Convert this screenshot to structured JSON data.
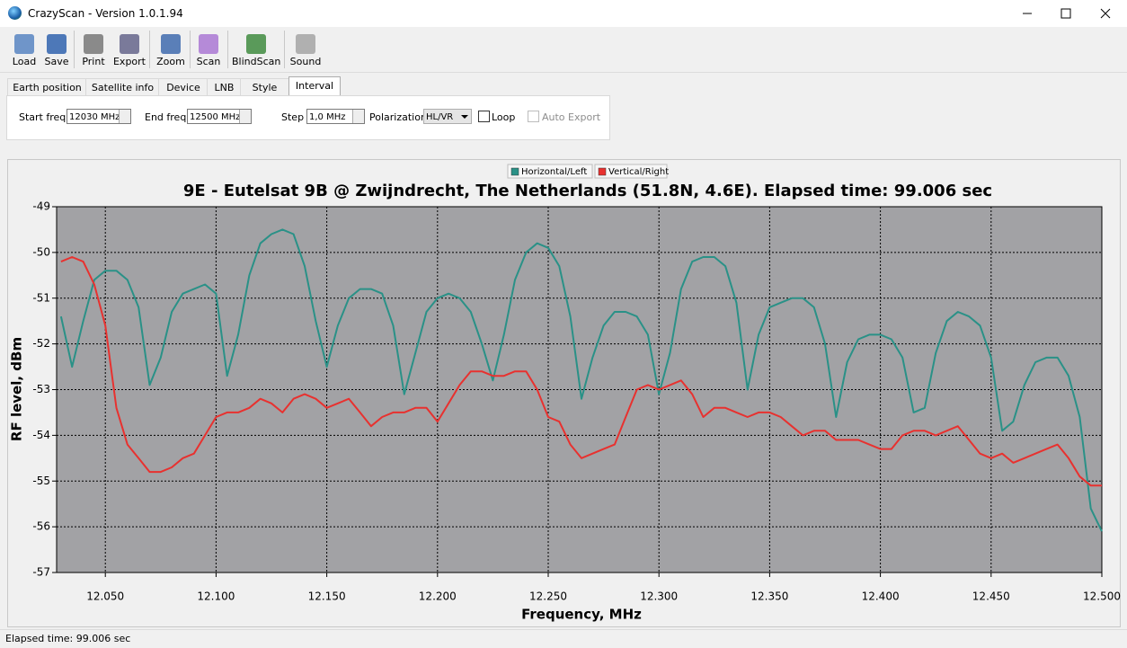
{
  "window": {
    "title": "CrazyScan - Version 1.0.1.94"
  },
  "toolbar": [
    "Load",
    "Save",
    "Print",
    "Export",
    "Zoom",
    "Scan",
    "BlindScan",
    "Sound"
  ],
  "tabs": [
    "Earth position",
    "Satellite info",
    "Device",
    "LNB",
    "Style",
    "Interval"
  ],
  "form": {
    "start_label": "Start freq",
    "start_value": "12030 MHz",
    "end_label": "End freq",
    "end_value": "12500 MHz",
    "step_label": "Step",
    "step_value": "1,0 MHz",
    "pol_label": "Polarization",
    "pol_value": "HL/VR",
    "loop_label": "Loop",
    "auto_export_label": "Auto Export"
  },
  "status": "Elapsed time: 99.006 sec",
  "chart_data": {
    "type": "line",
    "title": "9E - Eutelsat 9B @ Zwijndrecht, The Netherlands (51.8N, 4.6E). Elapsed time: 99.006 sec",
    "x_label": "Frequency, MHz",
    "y_label": "RF level, dBm",
    "legend": "top-center",
    "grid": true,
    "xlim": [
      12.028,
      12.5
    ],
    "ylim": [
      -57,
      -49
    ],
    "xticks": [
      {
        "value": 12.05,
        "label": "12.050"
      },
      {
        "value": 12.1,
        "label": "12.100"
      },
      {
        "value": 12.15,
        "label": "12.150"
      },
      {
        "value": 12.2,
        "label": "12.200"
      },
      {
        "value": 12.25,
        "label": "12.250"
      },
      {
        "value": 12.3,
        "label": "12.300"
      },
      {
        "value": 12.35,
        "label": "12.350"
      },
      {
        "value": 12.4,
        "label": "12.400"
      },
      {
        "value": 12.45,
        "label": "12.450"
      },
      {
        "value": 12.5,
        "label": "12.500"
      }
    ],
    "yticks": [
      -49,
      -50,
      -51,
      -52,
      -53,
      -54,
      -55,
      -56,
      -57
    ],
    "x": [
      12.03,
      12.035,
      12.04,
      12.045,
      12.05,
      12.055,
      12.06,
      12.065,
      12.07,
      12.075,
      12.08,
      12.085,
      12.09,
      12.095,
      12.1,
      12.105,
      12.11,
      12.115,
      12.12,
      12.125,
      12.13,
      12.135,
      12.14,
      12.145,
      12.15,
      12.155,
      12.16,
      12.165,
      12.17,
      12.175,
      12.18,
      12.185,
      12.19,
      12.195,
      12.2,
      12.205,
      12.21,
      12.215,
      12.22,
      12.225,
      12.23,
      12.235,
      12.24,
      12.245,
      12.25,
      12.255,
      12.26,
      12.265,
      12.27,
      12.275,
      12.28,
      12.285,
      12.29,
      12.295,
      12.3,
      12.305,
      12.31,
      12.315,
      12.32,
      12.325,
      12.33,
      12.335,
      12.34,
      12.345,
      12.35,
      12.355,
      12.36,
      12.365,
      12.37,
      12.375,
      12.38,
      12.385,
      12.39,
      12.395,
      12.4,
      12.405,
      12.41,
      12.415,
      12.42,
      12.425,
      12.43,
      12.435,
      12.44,
      12.445,
      12.45,
      12.455,
      12.46,
      12.465,
      12.47,
      12.475,
      12.48,
      12.485,
      12.49,
      12.495,
      12.5
    ],
    "series": [
      {
        "name": "Horizontal/Left",
        "color": "#2a9187",
        "values": [
          -51.4,
          -52.5,
          -51.5,
          -50.6,
          -50.4,
          -50.4,
          -50.6,
          -51.2,
          -52.9,
          -52.3,
          -51.3,
          -50.9,
          -50.8,
          -50.7,
          -50.9,
          -52.7,
          -51.8,
          -50.5,
          -49.8,
          -49.6,
          -49.5,
          -49.6,
          -50.3,
          -51.5,
          -52.5,
          -51.6,
          -51.0,
          -50.8,
          -50.8,
          -50.9,
          -51.6,
          -53.1,
          -52.2,
          -51.3,
          -51.0,
          -50.9,
          -51.0,
          -51.3,
          -52.0,
          -52.8,
          -51.8,
          -50.6,
          -50.0,
          -49.8,
          -49.9,
          -50.3,
          -51.4,
          -53.2,
          -52.3,
          -51.6,
          -51.3,
          -51.3,
          -51.4,
          -51.8,
          -53.1,
          -52.2,
          -50.8,
          -50.2,
          -50.1,
          -50.1,
          -50.3,
          -51.1,
          -53.0,
          -51.8,
          -51.2,
          -51.1,
          -51.0,
          -51.0,
          -51.2,
          -52.0,
          -53.6,
          -52.4,
          -51.9,
          -51.8,
          -51.8,
          -51.9,
          -52.3,
          -53.5,
          -53.4,
          -52.2,
          -51.5,
          -51.3,
          -51.4,
          -51.6,
          -52.3,
          -53.9,
          -53.7,
          -52.9,
          -52.4,
          -52.3,
          -52.3,
          -52.7,
          -53.6,
          -55.6,
          -56.1
        ]
      },
      {
        "name": "Vertical/Right",
        "color": "#e8312f",
        "values": [
          -50.2,
          -50.1,
          -50.2,
          -50.7,
          -51.6,
          -53.4,
          -54.2,
          -54.5,
          -54.8,
          -54.8,
          -54.7,
          -54.5,
          -54.4,
          -54.0,
          -53.6,
          -53.5,
          -53.5,
          -53.4,
          -53.2,
          -53.3,
          -53.5,
          -53.2,
          -53.1,
          -53.2,
          -53.4,
          -53.3,
          -53.2,
          -53.5,
          -53.8,
          -53.6,
          -53.5,
          -53.5,
          -53.4,
          -53.4,
          -53.7,
          -53.3,
          -52.9,
          -52.6,
          -52.6,
          -52.7,
          -52.7,
          -52.6,
          -52.6,
          -53.0,
          -53.6,
          -53.7,
          -54.2,
          -54.5,
          -54.4,
          -54.3,
          -54.2,
          -53.6,
          -53.0,
          -52.9,
          -53.0,
          -52.9,
          -52.8,
          -53.1,
          -53.6,
          -53.4,
          -53.4,
          -53.5,
          -53.6,
          -53.5,
          -53.5,
          -53.6,
          -53.8,
          -54.0,
          -53.9,
          -53.9,
          -54.1,
          -54.1,
          -54.1,
          -54.2,
          -54.3,
          -54.3,
          -54.0,
          -53.9,
          -53.9,
          -54.0,
          -53.9,
          -53.8,
          -54.1,
          -54.4,
          -54.5,
          -54.4,
          -54.6,
          -54.5,
          -54.4,
          -54.3,
          -54.2,
          -54.5,
          -54.9,
          -55.1,
          -55.1
        ]
      }
    ]
  }
}
